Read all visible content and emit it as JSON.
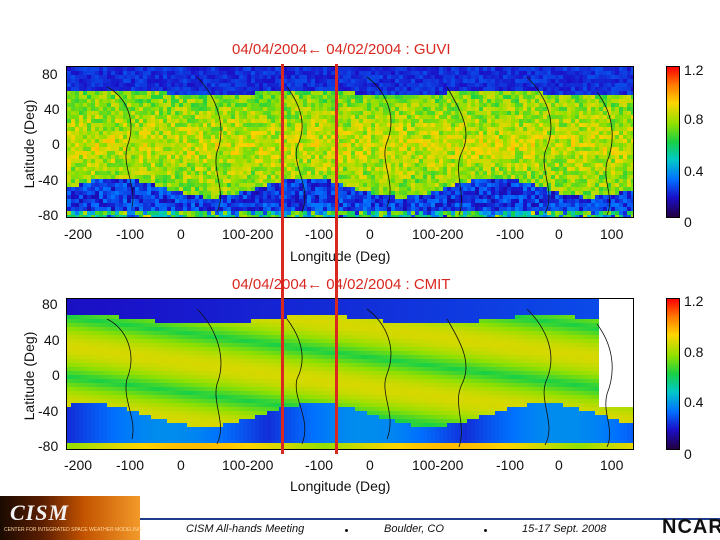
{
  "header": {
    "top_title": "04/04/2004← 04/02/2004 : GUVI",
    "bottom_title": "04/04/2004← 04/02/2004 : CMIT"
  },
  "chart_data": [
    {
      "type": "heatmap",
      "title": "04/04/2004← 04/02/2004 : GUVI",
      "xlabel": "Longitude (Deg)",
      "ylabel": "Latitude (Deg)",
      "x_ticks": [
        "-200",
        "-100",
        "0",
        "100-200",
        "-100",
        "0",
        "100-200",
        "-100",
        "0",
        "100"
      ],
      "y_ticks": [
        "80",
        "40",
        "0",
        "-40",
        "-80"
      ],
      "ylim": [
        -80,
        80
      ],
      "colorbar": {
        "min": 0,
        "max": 1.2,
        "ticks": [
          "1.2",
          "0.8",
          "0.4",
          "0"
        ]
      },
      "vertical_markers": [
        "04/04/2004",
        "04/02/2004"
      ]
    },
    {
      "type": "heatmap",
      "title": "04/04/2004← 04/02/2004 : CMIT",
      "xlabel": "Longitude (Deg)",
      "ylabel": "Latitude (Deg)",
      "x_ticks": [
        "-200",
        "-100",
        "0",
        "100-200",
        "-100",
        "0",
        "100-200",
        "-100",
        "0",
        "100"
      ],
      "y_ticks": [
        "80",
        "40",
        "0",
        "-40",
        "-80"
      ],
      "ylim": [
        -80,
        80
      ],
      "colorbar": {
        "min": 0,
        "max": 1.2,
        "ticks": [
          "1.2",
          "0.8",
          "0.4",
          "0"
        ]
      },
      "vertical_markers": [
        "04/04/2004",
        "04/02/2004"
      ]
    }
  ],
  "footer": {
    "logo_text": "CISM",
    "logo_subtext": "CENTER FOR INTEGRATED SPACE WEATHER MODELING",
    "meeting": "CISM All-hands Meeting",
    "location": "Boulder, CO",
    "dates": "15-17 Sept. 2008",
    "org": "NCAR"
  },
  "colors": {
    "marker": "#d9281f",
    "title": "#d9281f",
    "footer_rule": "#1f3c8a"
  }
}
